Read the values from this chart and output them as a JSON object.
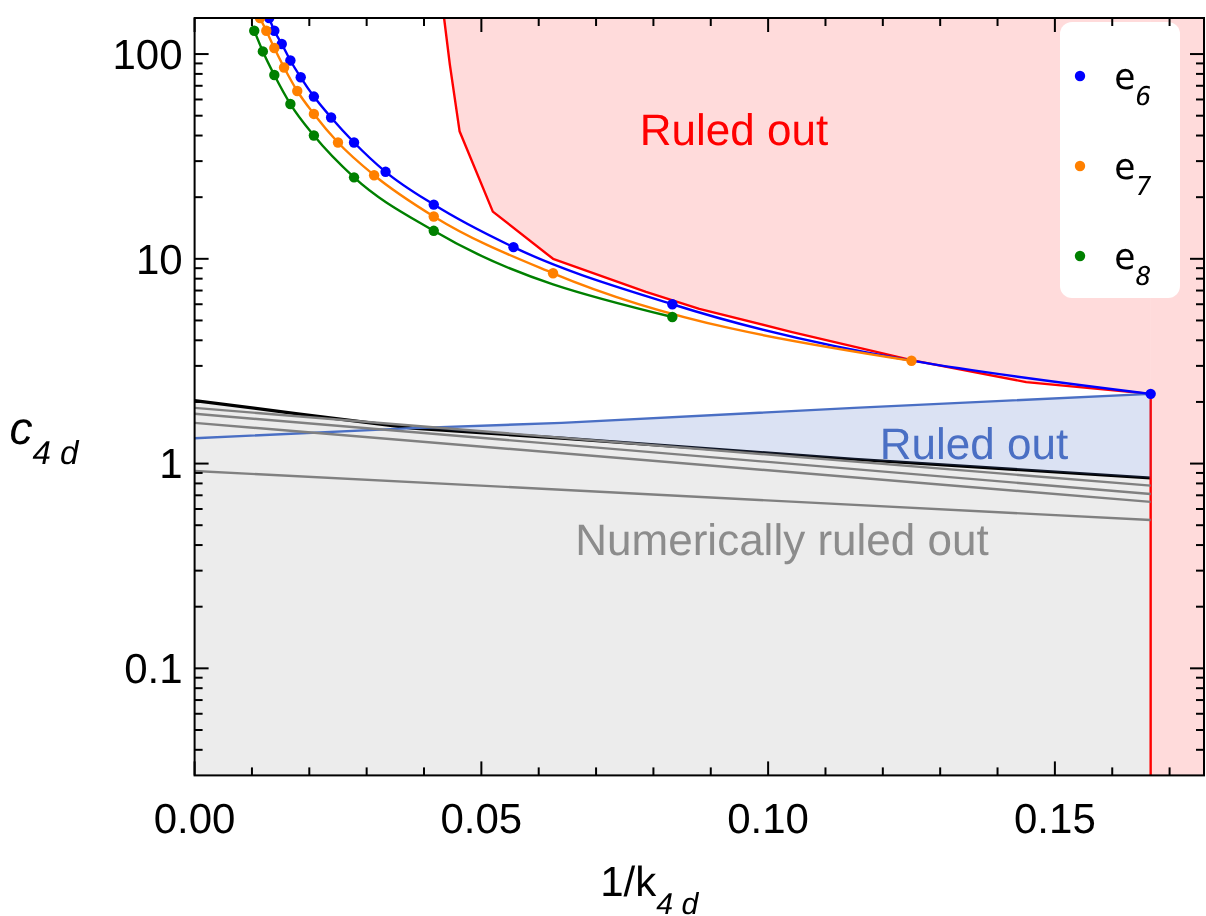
{
  "chart_data": {
    "type": "line",
    "xlabel": "1/k$_{4 d}$",
    "ylabel": "c$_{4 d}$",
    "xlim": [
      0,
      0.176
    ],
    "ylim": [
      0.03,
      150
    ],
    "log": "y",
    "xticks": [
      {
        "value": 0,
        "label": "0.00"
      },
      {
        "value": 0.01,
        "label": null
      },
      {
        "value": 0.02,
        "label": null
      },
      {
        "value": 0.03,
        "label": null
      },
      {
        "value": 0.04,
        "label": null
      },
      {
        "value": 0.05,
        "label": "0.05"
      },
      {
        "value": 0.06,
        "label": null
      },
      {
        "value": 0.07,
        "label": null
      },
      {
        "value": 0.08,
        "label": null
      },
      {
        "value": 0.09,
        "label": null
      },
      {
        "value": 0.1,
        "label": "0.10"
      },
      {
        "value": 0.11,
        "label": null
      },
      {
        "value": 0.12,
        "label": null
      },
      {
        "value": 0.13,
        "label": null
      },
      {
        "value": 0.14,
        "label": null
      },
      {
        "value": 0.15,
        "label": "0.15"
      },
      {
        "value": 0.16,
        "label": null
      },
      {
        "value": 0.17,
        "label": null
      }
    ],
    "yticks": [
      {
        "value": 0.04,
        "label": null
      },
      {
        "value": 0.05,
        "label": null
      },
      {
        "value": 0.06,
        "label": null
      },
      {
        "value": 0.07,
        "label": null
      },
      {
        "value": 0.08,
        "label": null
      },
      {
        "value": 0.09,
        "label": null
      },
      0.1,
      {
        "value": 0.2,
        "label": null
      },
      {
        "value": 0.3,
        "label": null
      },
      {
        "value": 0.4,
        "label": null
      },
      {
        "value": 0.5,
        "label": null
      },
      {
        "value": 0.6,
        "label": null
      },
      {
        "value": 0.7,
        "label": null
      },
      {
        "value": 0.8,
        "label": null
      },
      {
        "value": 0.9,
        "label": null
      },
      1,
      {
        "value": 2,
        "label": null
      },
      {
        "value": 3,
        "label": null
      },
      {
        "value": 4,
        "label": null
      },
      {
        "value": 5,
        "label": null
      },
      {
        "value": 6,
        "label": null
      },
      {
        "value": 7,
        "label": null
      },
      {
        "value": 8,
        "label": null
      },
      {
        "value": 9,
        "label": null
      },
      10,
      {
        "value": 20,
        "label": null
      },
      {
        "value": 30,
        "label": null
      },
      {
        "value": 40,
        "label": null
      },
      {
        "value": 50,
        "label": null
      },
      {
        "value": 60,
        "label": null
      },
      {
        "value": 70,
        "label": null
      },
      {
        "value": 80,
        "label": null
      },
      {
        "value": 90,
        "label": null
      },
      100
    ],
    "grid": false,
    "legend": "top right",
    "bands": [
      {
        "axis": "x",
        "from": 0.1667,
        "to": 0.176,
        "color": "#ff0000"
      }
    ],
    "series": [
      {
        "color": "#ff0000",
        "x": [
          0.0435,
          0.0445,
          0.0462,
          0.052,
          0.0625,
          0.0787,
          0.088,
          0.104,
          0.125,
          0.145,
          0.1667,
          0.1667
        ],
        "values": [
          150,
          89,
          42,
          17,
          10,
          6.9,
          5.7,
          4.4,
          3.2,
          2.5,
          2.19,
          0.03
        ],
        "lower": [
          150,
          89,
          42,
          17,
          10,
          6.9,
          5.7,
          4.4,
          3.2,
          2.5,
          2.19,
          0.03
        ],
        "upper": [
          150,
          150,
          150,
          150,
          150,
          150,
          150,
          150,
          150,
          150,
          150,
          150
        ]
      },
      {
        "color": "#4a6fc4",
        "x": [
          0,
          0.038,
          0.064,
          0.115,
          0.1667
        ],
        "values": [
          1.33,
          1.49,
          1.58,
          1.87,
          2.19
        ],
        "lower": [
          1.33,
          1.49,
          1.33,
          1.05,
          0.85
        ],
        "upper": [
          1.33,
          1.49,
          1.58,
          1.87,
          2.19
        ]
      },
      {
        "type": "area",
        "color": "#000000",
        "x": [
          0,
          0.018,
          0.038,
          0.064,
          0.115,
          0.1667
        ],
        "values": [
          2.03,
          1.75,
          1.49,
          1.33,
          1.05,
          0.85
        ]
      },
      {
        "color": "#808080",
        "x": [
          0,
          0.1667
        ],
        "values": [
          1.87,
          0.78
        ]
      },
      {
        "color": "#808080",
        "x": [
          0,
          0.1667
        ],
        "values": [
          1.75,
          0.71
        ]
      },
      {
        "color": "#808080",
        "x": [
          0,
          0.1667
        ],
        "values": [
          1.58,
          0.65
        ]
      },
      {
        "color": "#808080",
        "x": [
          0,
          0.1667
        ],
        "values": [
          0.92,
          0.53
        ]
      },
      {
        "name": "e$_{6}$",
        "color": "#0000ff",
        "marker": "circle",
        "x": [
          0.013,
          0.0139,
          0.0152,
          0.0167,
          0.0185,
          0.0208,
          0.0238,
          0.0278,
          0.0333,
          0.0417,
          0.0556,
          0.0833,
          0.1667
        ],
        "values": [
          150,
          130,
          112,
          93,
          77,
          62,
          49,
          37,
          26.6,
          18.4,
          11.4,
          6.0,
          2.19
        ]
      },
      {
        "name": "e$_{7}$",
        "color": "#ff8000",
        "marker": "circle",
        "x": [
          0.0114,
          0.0125,
          0.0139,
          0.0156,
          0.0179,
          0.0208,
          0.025,
          0.0313,
          0.0417,
          0.0625,
          0.125
        ],
        "values": [
          150,
          130,
          107,
          86,
          66,
          51,
          37,
          25.6,
          16.1,
          8.5,
          3.18
        ]
      },
      {
        "name": "e$_{8}$",
        "color": "#008000",
        "marker": "circle",
        "x": [
          0.0104,
          0.0119,
          0.0139,
          0.0167,
          0.0208,
          0.0278,
          0.0417,
          0.0833
        ],
        "values": [
          130,
          103,
          79,
          57,
          40,
          25,
          13.7,
          5.2
        ]
      }
    ],
    "annotations": [
      "Ruled out",
      "Ruled out",
      "Numerically ruled out"
    ]
  }
}
